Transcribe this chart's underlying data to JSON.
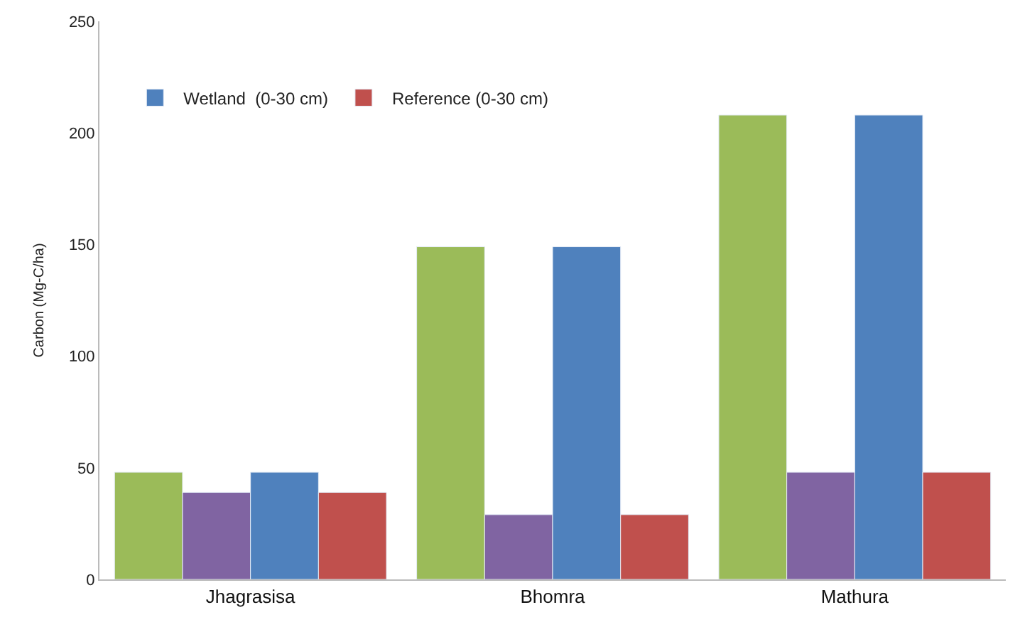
{
  "chart_data": {
    "type": "bar",
    "ylabel": "Carbon (Mg-C/ha)",
    "categories": [
      "Jhagrasisa",
      "Bhomra",
      "Mathura"
    ],
    "series": [
      {
        "color": "#9bbb59",
        "values": [
          48,
          149,
          208
        ]
      },
      {
        "color": "#8064a2",
        "values": [
          39,
          29,
          48
        ]
      },
      {
        "name": "Wetland  (0-30 cm)",
        "color": "#4f81bd",
        "values": [
          48,
          149,
          208
        ]
      },
      {
        "name": "Reference (0-30 cm)",
        "color": "#c0504d",
        "values": [
          39,
          29,
          48
        ]
      }
    ],
    "ylim": [
      0,
      250
    ],
    "yticks": [
      0,
      50,
      100,
      150,
      200,
      250
    ],
    "legend": "top left"
  }
}
